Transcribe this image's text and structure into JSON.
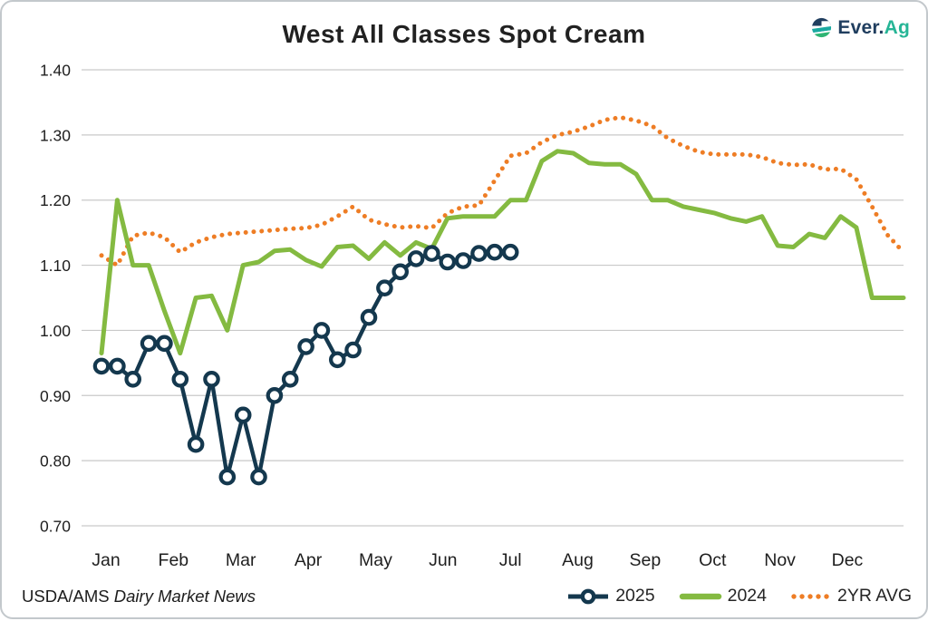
{
  "title": "West All Classes Spot Cream",
  "logo": {
    "text_primary": "Ever.",
    "text_accent": "Ag"
  },
  "footer": {
    "source_prefix": "USDA/AMS ",
    "source_italic": "Dairy Market News"
  },
  "legend": [
    {
      "label": "2025"
    },
    {
      "label": "2024"
    },
    {
      "label": "2YR AVG"
    }
  ],
  "colors": {
    "navy": "#14384e",
    "green": "#84ba41",
    "orange": "#ee7d25",
    "grid": "#c9c9c9",
    "axis_text": "#1e1e1e",
    "logo_navy": "#203e5f",
    "logo_teal": "#26b596"
  },
  "chart_data": {
    "type": "line",
    "title": "West All Classes Spot Cream",
    "xlabel": "",
    "ylabel": "",
    "ylim": [
      0.7,
      1.4
    ],
    "grid": true,
    "legend_position": "bottom-right",
    "y_ticks": [
      "1.40",
      "1.30",
      "1.20",
      "1.10",
      "1.00",
      "0.90",
      "0.80",
      "0.70"
    ],
    "x_categories": [
      "Jan",
      "Feb",
      "Mar",
      "Apr",
      "May",
      "Jun",
      "Jul",
      "Aug",
      "Sep",
      "Oct",
      "Nov",
      "Dec"
    ],
    "weeks": 52,
    "series": [
      {
        "name": "2025",
        "style": "line-marker",
        "color": "#14384e",
        "values": [
          0.945,
          0.945,
          0.925,
          0.98,
          0.98,
          0.925,
          0.825,
          0.925,
          0.775,
          0.87,
          0.775,
          0.9,
          0.925,
          0.975,
          1.0,
          0.955,
          0.97,
          1.02,
          1.065,
          1.09,
          1.11,
          1.118,
          1.105,
          1.107,
          1.118,
          1.12,
          1.12
        ]
      },
      {
        "name": "2024",
        "style": "line",
        "color": "#84ba41",
        "values": [
          0.965,
          1.2,
          1.1,
          1.1,
          1.03,
          0.965,
          1.05,
          1.053,
          1.0,
          1.1,
          1.105,
          1.122,
          1.124,
          1.108,
          1.098,
          1.128,
          1.13,
          1.11,
          1.135,
          1.115,
          1.135,
          1.125,
          1.172,
          1.175,
          1.175,
          1.175,
          1.2,
          1.2,
          1.26,
          1.275,
          1.272,
          1.257,
          1.255,
          1.255,
          1.24,
          1.2,
          1.2,
          1.19,
          1.185,
          1.18,
          1.172,
          1.167,
          1.175,
          1.13,
          1.128,
          1.148,
          1.142,
          1.175,
          1.158,
          1.05,
          1.05,
          1.05
        ]
      },
      {
        "name": "2YR AVG",
        "style": "dotted",
        "color": "#ee7d25",
        "values": [
          1.115,
          1.1,
          1.145,
          1.15,
          1.143,
          1.12,
          1.135,
          1.143,
          1.148,
          1.15,
          1.152,
          1.154,
          1.156,
          1.157,
          1.162,
          1.175,
          1.19,
          1.17,
          1.163,
          1.158,
          1.16,
          1.157,
          1.18,
          1.19,
          1.192,
          1.23,
          1.268,
          1.272,
          1.289,
          1.3,
          1.305,
          1.313,
          1.323,
          1.327,
          1.322,
          1.314,
          1.295,
          1.283,
          1.274,
          1.27,
          1.27,
          1.27,
          1.266,
          1.257,
          1.254,
          1.255,
          1.247,
          1.248,
          1.232,
          1.19,
          1.146,
          1.12
        ]
      }
    ]
  }
}
